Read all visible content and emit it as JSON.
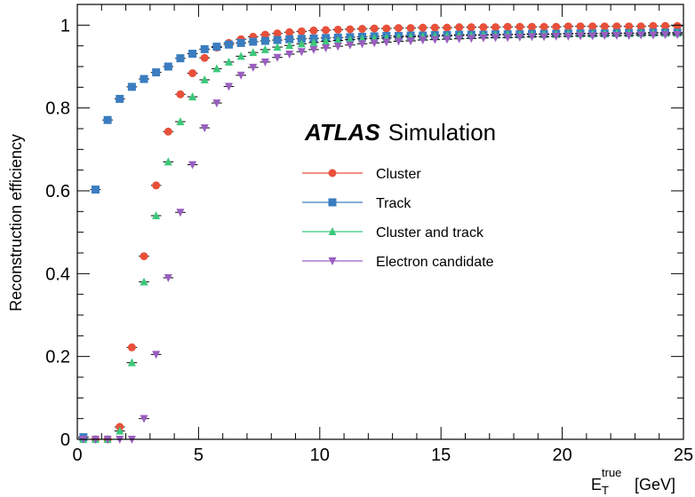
{
  "chart_data": {
    "type": "scatter",
    "title": "",
    "annotation": {
      "bold": "ATLAS",
      "text": "Simulation"
    },
    "xlabel": {
      "main": "E",
      "sub": "T",
      "sup": "true",
      "unit": "[GeV]"
    },
    "ylabel": "Reconstruction efficiency",
    "xlim": [
      0,
      25
    ],
    "ylim": [
      0,
      1.05
    ],
    "xticks": [
      0,
      5,
      10,
      15,
      20,
      25
    ],
    "xtick_labels": [
      "0",
      "5",
      "10",
      "15",
      "20",
      "25"
    ],
    "yticks": [
      0,
      0.2,
      0.4,
      0.6,
      0.8,
      1
    ],
    "ytick_labels": [
      "0",
      "0.2",
      "0.4",
      "0.6",
      "0.8",
      "1"
    ],
    "grid": false,
    "legend_position": "center-right",
    "series": [
      {
        "name": "Cluster",
        "marker": "circle",
        "color": "#e8503a",
        "x": [
          0.25,
          0.75,
          1.25,
          1.75,
          2.25,
          2.75,
          3.25,
          3.75,
          4.25,
          4.75,
          5.25,
          5.75,
          6.25,
          6.75,
          7.25,
          7.75,
          8.25,
          8.75,
          9.25,
          9.75,
          10.25,
          10.75,
          11.25,
          11.75,
          12.25,
          12.75,
          13.25,
          13.75,
          14.25,
          14.75,
          15.25,
          15.75,
          16.25,
          16.75,
          17.25,
          17.75,
          18.25,
          18.75,
          19.25,
          19.75,
          20.25,
          20.75,
          21.25,
          21.75,
          22.25,
          22.75,
          23.25,
          23.75,
          24.25,
          24.75
        ],
        "y": [
          0.005,
          0.0,
          0.0,
          0.03,
          0.222,
          0.442,
          0.613,
          0.743,
          0.833,
          0.884,
          0.921,
          0.946,
          0.957,
          0.966,
          0.972,
          0.977,
          0.98,
          0.983,
          0.985,
          0.987,
          0.988,
          0.989,
          0.99,
          0.991,
          0.992,
          0.992,
          0.993,
          0.993,
          0.994,
          0.994,
          0.994,
          0.995,
          0.995,
          0.995,
          0.995,
          0.996,
          0.996,
          0.996,
          0.996,
          0.996,
          0.997,
          0.997,
          0.997,
          0.997,
          0.997,
          0.997,
          0.997,
          0.998,
          0.998,
          0.998
        ]
      },
      {
        "name": "Track",
        "marker": "square",
        "color": "#3a7dc0",
        "x": [
          0.25,
          0.75,
          1.25,
          1.75,
          2.25,
          2.75,
          3.25,
          3.75,
          4.25,
          4.75,
          5.25,
          5.75,
          6.25,
          6.75,
          7.25,
          7.75,
          8.25,
          8.75,
          9.25,
          9.75,
          10.25,
          10.75,
          11.25,
          11.75,
          12.25,
          12.75,
          13.25,
          13.75,
          14.25,
          14.75,
          15.25,
          15.75,
          16.25,
          16.75,
          17.25,
          17.75,
          18.25,
          18.75,
          19.25,
          19.75,
          20.25,
          20.75,
          21.25,
          21.75,
          22.25,
          22.75,
          23.25,
          23.75,
          24.25,
          24.75
        ],
        "y": [
          0.005,
          0.603,
          0.771,
          0.822,
          0.851,
          0.87,
          0.886,
          0.9,
          0.92,
          0.931,
          0.942,
          0.948,
          0.953,
          0.957,
          0.96,
          0.962,
          0.964,
          0.966,
          0.967,
          0.968,
          0.969,
          0.97,
          0.971,
          0.972,
          0.973,
          0.974,
          0.974,
          0.975,
          0.975,
          0.976,
          0.976,
          0.977,
          0.977,
          0.977,
          0.978,
          0.978,
          0.978,
          0.979,
          0.979,
          0.979,
          0.98,
          0.98,
          0.98,
          0.98,
          0.981,
          0.981,
          0.981,
          0.982,
          0.982,
          0.982
        ]
      },
      {
        "name": "Cluster and track",
        "marker": "triangle-up",
        "color": "#3cc87a",
        "x": [
          0.25,
          0.75,
          1.25,
          1.75,
          2.25,
          2.75,
          3.25,
          3.75,
          4.25,
          4.75,
          5.25,
          5.75,
          6.25,
          6.75,
          7.25,
          7.75,
          8.25,
          8.75,
          9.25,
          9.75,
          10.25,
          10.75,
          11.25,
          11.75,
          12.25,
          12.75,
          13.25,
          13.75,
          14.25,
          14.75,
          15.25,
          15.75,
          16.25,
          16.75,
          17.25,
          17.75,
          18.25,
          18.75,
          19.25,
          19.75,
          20.25,
          20.75,
          21.25,
          21.75,
          22.25,
          22.75,
          23.25,
          23.75,
          24.25,
          24.75
        ],
        "y": [
          0.0,
          0.0,
          0.0,
          0.02,
          0.185,
          0.38,
          0.54,
          0.67,
          0.767,
          0.827,
          0.868,
          0.895,
          0.911,
          0.925,
          0.934,
          0.941,
          0.947,
          0.951,
          0.955,
          0.958,
          0.961,
          0.963,
          0.965,
          0.967,
          0.968,
          0.969,
          0.971,
          0.972,
          0.972,
          0.973,
          0.974,
          0.975,
          0.975,
          0.976,
          0.976,
          0.977,
          0.977,
          0.978,
          0.978,
          0.978,
          0.979,
          0.979,
          0.979,
          0.98,
          0.98,
          0.98,
          0.98,
          0.981,
          0.981,
          0.981
        ]
      },
      {
        "name": "Electron candidate",
        "marker": "triangle-down",
        "color": "#9a5ec0",
        "x": [
          0.25,
          0.75,
          1.25,
          1.75,
          2.25,
          2.75,
          3.25,
          3.75,
          4.25,
          4.75,
          5.25,
          5.75,
          6.25,
          6.75,
          7.25,
          7.75,
          8.25,
          8.75,
          9.25,
          9.75,
          10.25,
          10.75,
          11.25,
          11.75,
          12.25,
          12.75,
          13.25,
          13.75,
          14.25,
          14.75,
          15.25,
          15.75,
          16.25,
          16.75,
          17.25,
          17.75,
          18.25,
          18.75,
          19.25,
          19.75,
          20.25,
          20.75,
          21.25,
          21.75,
          22.25,
          22.75,
          23.25,
          23.75,
          24.25,
          24.75
        ],
        "y": [
          0.0,
          0.0,
          0.0,
          0.0,
          0.0,
          0.05,
          0.205,
          0.39,
          0.548,
          0.663,
          0.752,
          0.812,
          0.852,
          0.879,
          0.898,
          0.911,
          0.922,
          0.93,
          0.936,
          0.941,
          0.945,
          0.949,
          0.952,
          0.955,
          0.957,
          0.959,
          0.961,
          0.962,
          0.964,
          0.965,
          0.966,
          0.967,
          0.968,
          0.969,
          0.97,
          0.97,
          0.971,
          0.972,
          0.972,
          0.973,
          0.973,
          0.974,
          0.974,
          0.975,
          0.975,
          0.975,
          0.976,
          0.976,
          0.977,
          0.977
        ]
      }
    ]
  }
}
